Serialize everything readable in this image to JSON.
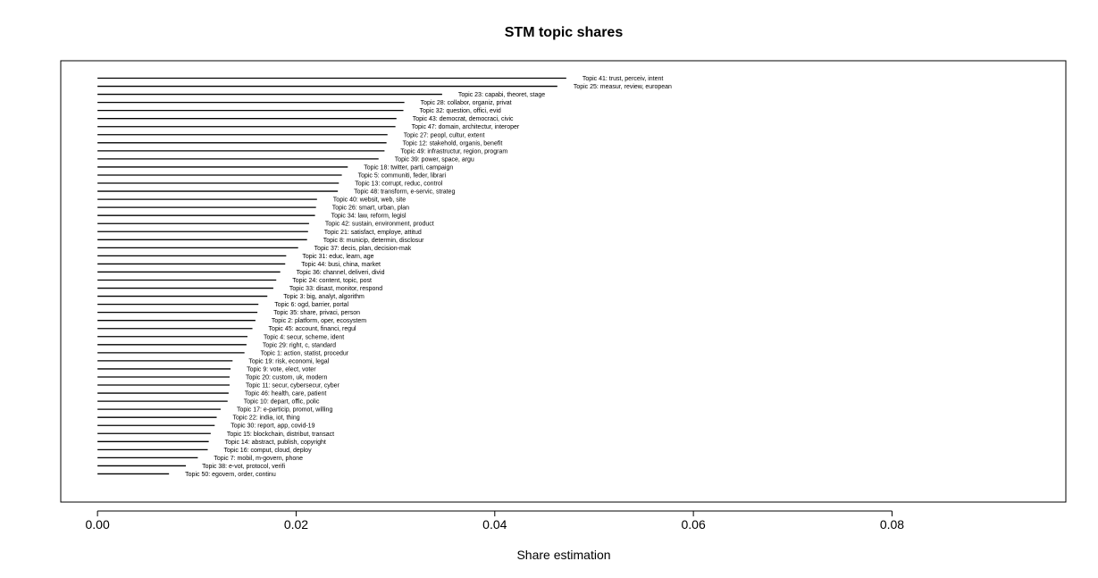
{
  "chart_data": {
    "type": "bar",
    "orientation": "horizontal",
    "title": "STM topic shares",
    "xlabel": "Share estimation",
    "ylabel": "",
    "xlim": [
      -0.0037,
      0.0975
    ],
    "xticks": [
      0.0,
      0.02,
      0.04,
      0.06,
      0.08
    ],
    "xtick_labels": [
      "0.00",
      "0.02",
      "0.04",
      "0.06",
      "0.08"
    ],
    "grid": false,
    "legend": "none",
    "bar_color": "#000000",
    "categories": [
      "Topic 41: trust, perceiv, intent",
      "Topic 25: measur, review, european",
      "Topic 23: capabi, theoret, stage",
      "Topic 28: collabor, organiz, privat",
      "Topic 32: question, offici, evid",
      "Topic 43: democrat, democraci, civic",
      "Topic 47: domain, architectur, interoper",
      "Topic 27: peopl, cultur, extent",
      "Topic 12: stakehold, organis, benefit",
      "Topic 49: infrastructur, region, program",
      "Topic 39: power, space, argu",
      "Topic 18: twitter, parti, campaign",
      "Topic 5: communiti, feder, librari",
      "Topic 13: corrupt, reduc, control",
      "Topic 48: transform, e-servic, strateg",
      "Topic 40: websit, web, site",
      "Topic 26: smart, urban, plan",
      "Topic 34: law, reform, legisl",
      "Topic 42: sustain, environment, product",
      "Topic 21: satisfact, employe, attitud",
      "Topic 8: municip, determin, disclosur",
      "Topic 37: decis, plan, decision-mak",
      "Topic 31: educ, learn, age",
      "Topic 44: busi, china, market",
      "Topic 36: channel, deliveri, divid",
      "Topic 24: content, topic, post",
      "Topic 33: disast, monitor, respond",
      "Topic 3: big, analyt, algorithm",
      "Topic 6: ogd, barrier, portal",
      "Topic 35: share, privaci, person",
      "Topic 2: platform, oper, ecosystem",
      "Topic 45: account, financi, regul",
      "Topic 4: secur, scheme, ident",
      "Topic 29: right, c, standard",
      "Topic 1: action, statist, procedur",
      "Topic 19: risk, economi, legal",
      "Topic 9: vote, elect, voter",
      "Topic 20: custom, uk, modern",
      "Topic 11: secur, cybersecur, cyber",
      "Topic 46: health, care, patient",
      "Topic 10: depart, offic, polic",
      "Topic 17: e-particip, promot, willing",
      "Topic 22: india, iot, thing",
      "Topic 30: report, app, covid-19",
      "Topic 15: blockchain, distribut, transact",
      "Topic 14: abstract, publish, copyright",
      "Topic 16: comput, cloud, deploy",
      "Topic 7: mobil, m-govern, phone",
      "Topic 38: e-vot, protocol, verifi",
      "Topic 50: egovern, order, continu"
    ],
    "values": [
      0.0472,
      0.0463,
      0.0347,
      0.0309,
      0.0308,
      0.0301,
      0.03,
      0.0292,
      0.0291,
      0.0289,
      0.0283,
      0.0252,
      0.0246,
      0.0243,
      0.0242,
      0.0221,
      0.022,
      0.0219,
      0.0213,
      0.0212,
      0.0211,
      0.0202,
      0.019,
      0.0189,
      0.0184,
      0.018,
      0.0177,
      0.0171,
      0.0162,
      0.0161,
      0.0159,
      0.0156,
      0.0151,
      0.015,
      0.0148,
      0.0136,
      0.0134,
      0.0133,
      0.0133,
      0.0132,
      0.0131,
      0.0124,
      0.012,
      0.0118,
      0.0114,
      0.0112,
      0.0111,
      0.0101,
      0.0089,
      0.0072
    ]
  }
}
